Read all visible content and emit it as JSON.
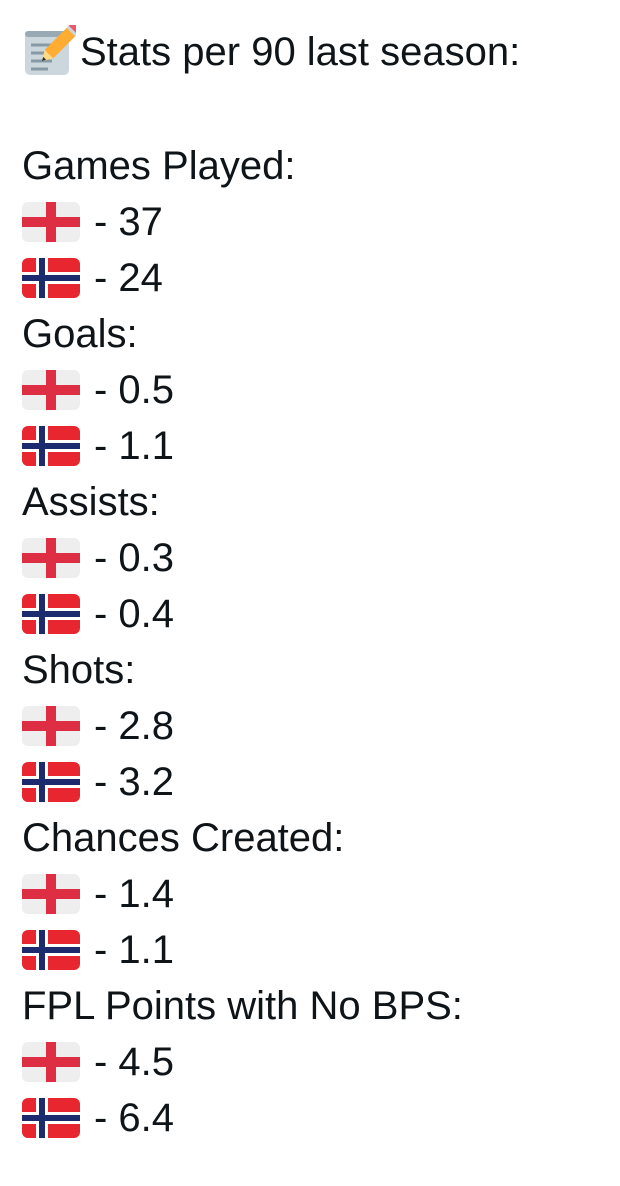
{
  "title": "Stats per 90 last season:",
  "sections": [
    {
      "label": "Games Played:",
      "england": "- 37",
      "norway": "- 24"
    },
    {
      "label": "Goals:",
      "england": "- 0.5",
      "norway": "- 1.1"
    },
    {
      "label": "Assists:",
      "england": "- 0.3",
      "norway": "- 0.4"
    },
    {
      "label": "Shots:",
      "england": "- 2.8",
      "norway": "- 3.2"
    },
    {
      "label": "Chances Created:",
      "england": "- 1.4",
      "norway": "- 1.1"
    },
    {
      "label": "FPL Points with No BPS:",
      "england": "- 4.5",
      "norway": "- 6.4"
    }
  ],
  "icons": {
    "title": "memo-icon",
    "england": "england-flag-icon",
    "norway": "norway-flag-icon"
  },
  "colors": {
    "text": "#0f1419",
    "england_red": "#dd2e44",
    "norway_red": "#e8262f",
    "norway_blue": "#1c2b6e"
  }
}
